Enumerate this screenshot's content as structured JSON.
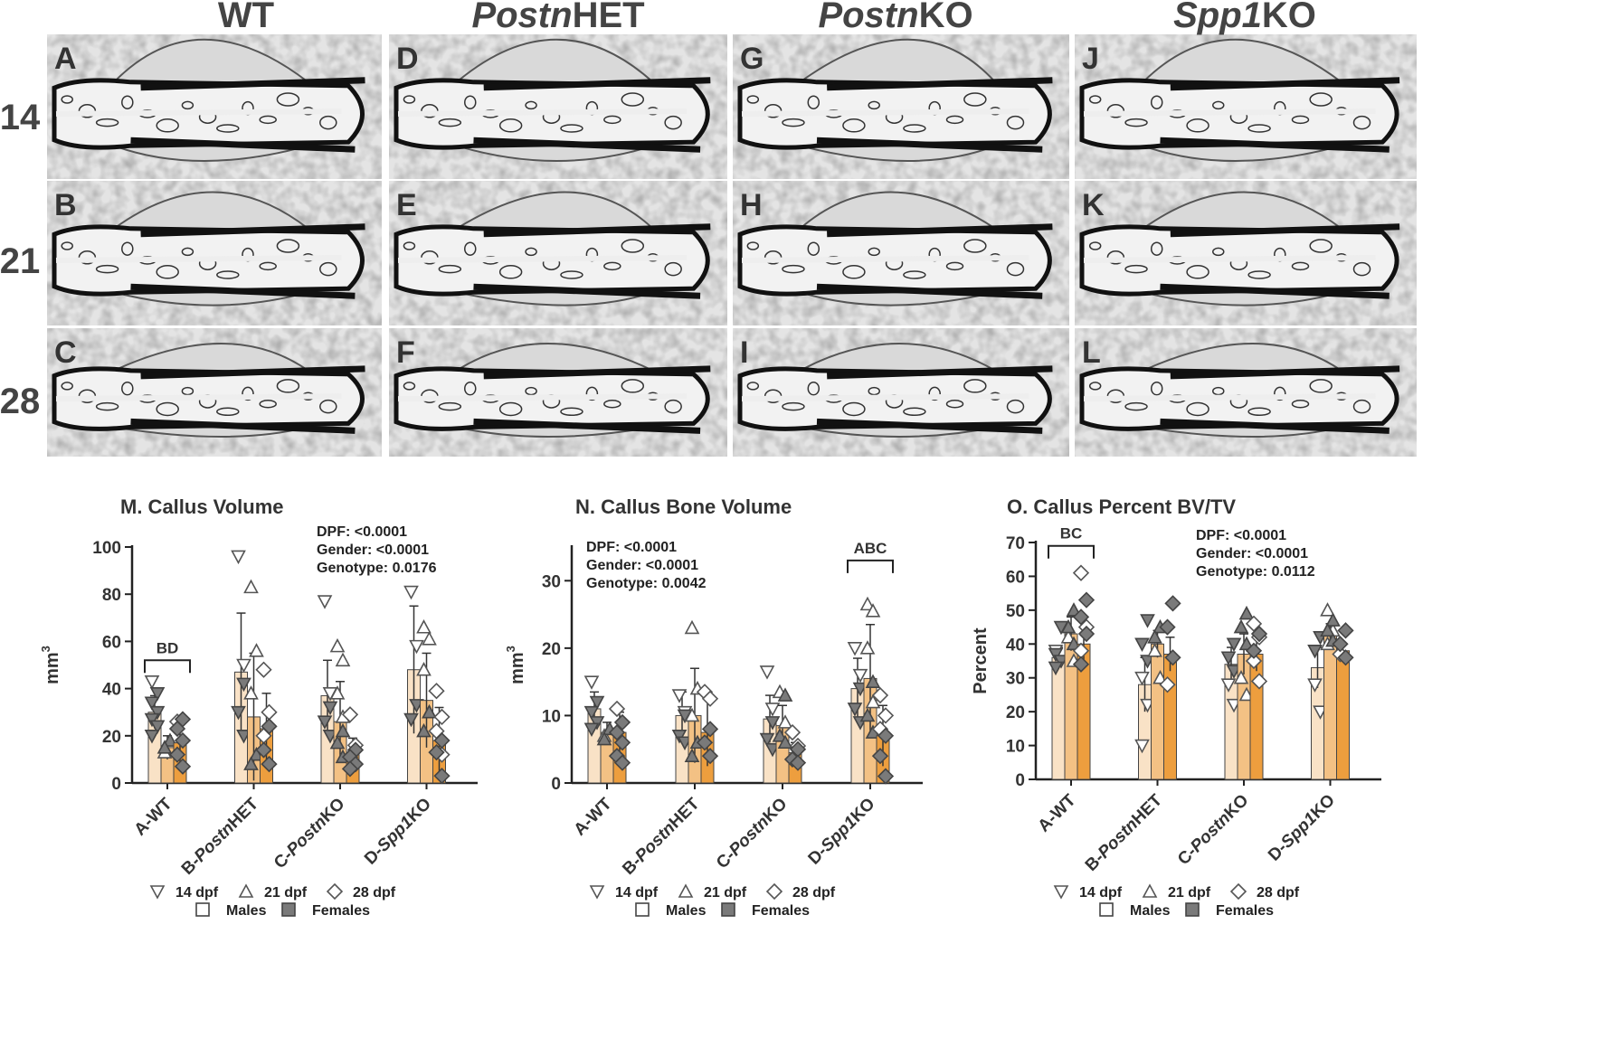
{
  "column_headers": [
    {
      "italic": "",
      "plain": "WT"
    },
    {
      "italic": "Postn",
      "plain": "HET"
    },
    {
      "italic": "Postn",
      "plain": "KO"
    },
    {
      "italic": "Spp1",
      "plain": "KO"
    }
  ],
  "row_labels": [
    "14",
    "21",
    "28"
  ],
  "panels": [
    [
      "A",
      "D",
      "G",
      "J"
    ],
    [
      "B",
      "E",
      "H",
      "K"
    ],
    [
      "C",
      "F",
      "I",
      "L"
    ]
  ],
  "legend": {
    "timepoints": [
      "14 dpf",
      "21 dpf",
      "28 dpf"
    ],
    "sexes": [
      "Males",
      "Females"
    ]
  },
  "colors": {
    "d14": "#f9e2c6",
    "d21": "#f3c184",
    "d28": "#ed9e3e",
    "female_marker": "#7a7a7a",
    "text": "#333333"
  },
  "chart_data": [
    {
      "type": "bar",
      "title": "M. Callus Volume",
      "ylabel": "mm",
      "ylabel_sup": "3",
      "ylim": [
        0,
        100
      ],
      "yticks": [
        0,
        20,
        40,
        60,
        80,
        100
      ],
      "categories": [
        {
          "pre": "A-",
          "italic": "",
          "post": "WT"
        },
        {
          "pre": "B-",
          "italic": "Postn",
          "post": "HET"
        },
        {
          "pre": "C-",
          "italic": "Postn",
          "post": "KO"
        },
        {
          "pre": "D-",
          "italic": "Spp1",
          "post": "KO"
        }
      ],
      "series": [
        {
          "name": "14 dpf",
          "values": [
            30,
            47,
            37,
            48
          ],
          "errors": [
            7,
            25,
            15,
            27
          ],
          "males": [
            [
              43
            ],
            [
              96,
              50
            ],
            [
              77,
              38
            ],
            [
              81,
              58
            ]
          ],
          "females": [
            [
              38,
              34,
              30,
              27,
              24,
              20
            ],
            [
              42,
              30,
              20
            ],
            [
              32,
              26,
              20
            ],
            [
              33,
              27
            ]
          ]
        },
        {
          "name": "21 dpf",
          "values": [
            15,
            28,
            26,
            35
          ],
          "errors": [
            5,
            27,
            17,
            20
          ],
          "males": [
            [
              13
            ],
            [
              83,
              56,
              38
            ],
            [
              58,
              52,
              38,
              28
            ],
            [
              66,
              61,
              48,
              30
            ]
          ],
          "females": [
            [
              18,
              15
            ],
            [
              12,
              8
            ],
            [
              22,
              17,
              11
            ],
            [
              30,
              22
            ]
          ]
        },
        {
          "name": "28 dpf",
          "values": [
            17,
            23,
            12,
            18
          ],
          "errors": [
            8,
            15,
            7,
            14
          ],
          "males": [
            [
              26
            ],
            [
              48,
              30,
              20
            ],
            [
              29,
              16
            ],
            [
              39,
              28,
              22,
              12
            ]
          ],
          "females": [
            [
              27,
              23,
              18,
              12,
              7
            ],
            [
              24,
              14,
              8
            ],
            [
              14,
              11,
              8,
              6
            ],
            [
              18,
              13,
              3
            ]
          ]
        }
      ],
      "annotations": [
        {
          "bracket": [
            0,
            0
          ],
          "text": "BD",
          "y": 52
        }
      ],
      "stats": [
        "DPF: <0.0001",
        "Gender: <0.0001",
        "Genotype: 0.0176"
      ]
    },
    {
      "type": "bar",
      "title": "N. Callus Bone Volume",
      "ylabel": "mm",
      "ylabel_sup": "3",
      "ylim": [
        0,
        35
      ],
      "yticks": [
        0,
        10,
        20,
        30
      ],
      "categories": [
        {
          "pre": "A-",
          "italic": "",
          "post": "WT"
        },
        {
          "pre": "B-",
          "italic": "Postn",
          "post": "HET"
        },
        {
          "pre": "C-",
          "italic": "Postn",
          "post": "KO"
        },
        {
          "pre": "D-",
          "italic": "Spp1",
          "post": "KO"
        }
      ],
      "series": [
        {
          "name": "14 dpf",
          "values": [
            11,
            10,
            9.5,
            14
          ],
          "errors": [
            2.5,
            3.5,
            3.5,
            4.5
          ],
          "males": [
            [
              15
            ],
            [
              13,
              10.5
            ],
            [
              16.5,
              11
            ],
            [
              20,
              16
            ]
          ],
          "females": [
            [
              12,
              10.5,
              9,
              8
            ],
            [
              10,
              7,
              6
            ],
            [
              9,
              6.5,
              5
            ],
            [
              14,
              11,
              9
            ]
          ]
        },
        {
          "name": "21 dpf",
          "values": [
            7.5,
            10,
            8.5,
            15.5
          ],
          "errors": [
            1.5,
            7,
            3,
            8
          ],
          "males": [
            [
              7
            ],
            [
              23,
              14,
              10
            ],
            [
              13.5,
              9
            ],
            [
              26.5,
              25.5,
              20,
              12
            ]
          ],
          "females": [
            [
              8,
              6.5
            ],
            [
              6,
              4
            ],
            [
              13,
              7,
              6
            ],
            [
              15,
              10,
              7.5
            ]
          ]
        },
        {
          "name": "28 dpf",
          "values": [
            7.5,
            7.5,
            4.5,
            7
          ],
          "errors": [
            3,
            5,
            1.5,
            4.5
          ],
          "males": [
            [
              11
            ],
            [
              13.5,
              12.5
            ],
            [
              7.5,
              5.5
            ],
            [
              13,
              10,
              8
            ]
          ],
          "females": [
            [
              9,
              7.5,
              6,
              4,
              3
            ],
            [
              8,
              6,
              4
            ],
            [
              5,
              3.5,
              3
            ],
            [
              7,
              4,
              1
            ]
          ]
        }
      ],
      "annotations": [
        {
          "bracket": [
            3,
            3
          ],
          "text": "ABC",
          "y": 33
        }
      ],
      "stats": [
        "DPF: <0.0001",
        "Gender: <0.0001",
        "Genotype: 0.0042"
      ]
    },
    {
      "type": "bar",
      "title": "O. Callus Percent BV/TV",
      "ylabel": "Percent",
      "ylabel_sup": "",
      "ylim": [
        0,
        70
      ],
      "yticks": [
        0,
        10,
        20,
        30,
        40,
        50,
        60,
        70
      ],
      "categories": [
        {
          "pre": "A-",
          "italic": "",
          "post": "WT"
        },
        {
          "pre": "B-",
          "italic": "Postn",
          "post": "HET"
        },
        {
          "pre": "C-",
          "italic": "Postn",
          "post": "KO"
        },
        {
          "pre": "D-",
          "italic": "Spp1",
          "post": "KO"
        }
      ],
      "series": [
        {
          "name": "14 dpf",
          "values": [
            36,
            28,
            34,
            33
          ],
          "errors": [
            3,
            8,
            5,
            6
          ],
          "males": [
            [
              38
            ],
            [
              30,
              22,
              10
            ],
            [
              28,
              22
            ],
            [
              28,
              20
            ]
          ],
          "females": [
            [
              45,
              37,
              35,
              33
            ],
            [
              47,
              40,
              35
            ],
            [
              40,
              36,
              32
            ],
            [
              42,
              38
            ]
          ]
        },
        {
          "name": "21 dpf",
          "values": [
            43,
            40,
            37,
            43
          ],
          "errors": [
            5,
            4,
            6,
            3
          ],
          "males": [
            [
              42,
              35
            ],
            [
              38,
              30
            ],
            [
              30,
              25
            ],
            [
              50,
              44,
              40
            ]
          ],
          "females": [
            [
              50,
              45,
              40
            ],
            [
              45,
              42
            ],
            [
              49,
              45,
              40
            ],
            [
              47,
              44,
              41
            ]
          ]
        },
        {
          "name": "28 dpf",
          "values": [
            40,
            37,
            37,
            38
          ],
          "errors": [
            5,
            5,
            5,
            2
          ],
          "males": [
            [
              61,
              45,
              38
            ],
            [
              28
            ],
            [
              46,
              42,
              35,
              29
            ],
            [
              37
            ]
          ],
          "females": [
            [
              53,
              48,
              43,
              34
            ],
            [
              52,
              45,
              36
            ],
            [
              43,
              38
            ],
            [
              44,
              40,
              36
            ]
          ]
        }
      ],
      "annotations": [
        {
          "bracket": [
            0,
            0
          ],
          "text": "BC",
          "y": 69
        }
      ],
      "stats": [
        "DPF: <0.0001",
        "Gender: <0.0001",
        "Genotype: 0.0112"
      ]
    }
  ]
}
